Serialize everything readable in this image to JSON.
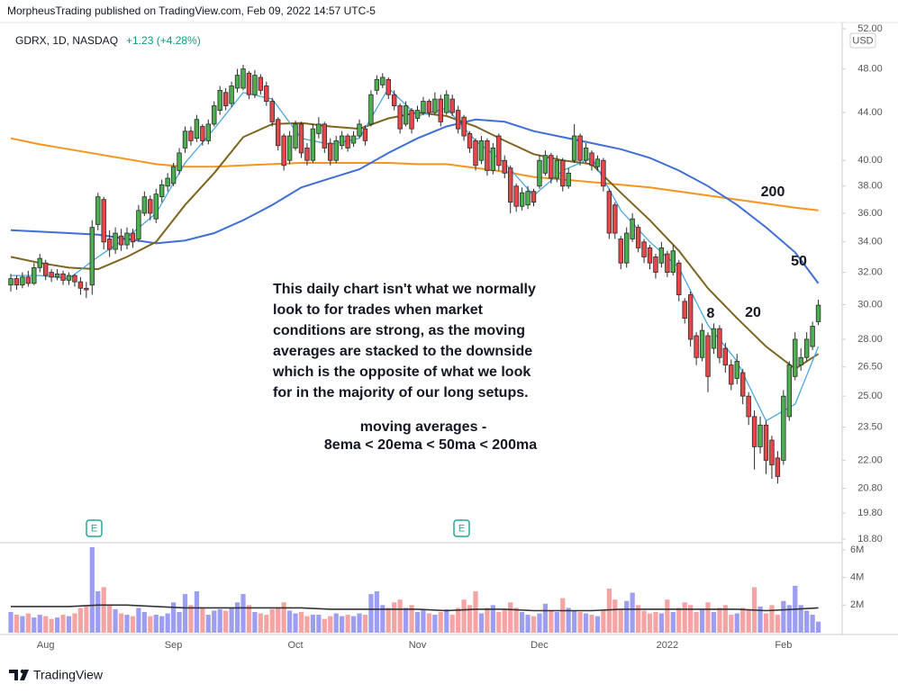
{
  "header": {
    "publisher": "MorpheusTrading published on TradingView.com, Feb 09, 2022 14:57 UTC-5",
    "symbol": "GDRX, 1D, NASDAQ",
    "change": "+1.23 (+4.28%)",
    "currency": "USD"
  },
  "chart_data": {
    "type": "candlestick",
    "log_scale": true,
    "categories": [
      null,
      null,
      null,
      null,
      null,
      null,
      "Aug",
      null,
      null,
      null,
      null,
      null,
      null,
      null,
      null,
      null,
      null,
      null,
      null,
      null,
      null,
      null,
      null,
      null,
      null,
      null,
      null,
      null,
      "Sep",
      null,
      null,
      null,
      null,
      null,
      null,
      null,
      null,
      null,
      null,
      null,
      null,
      null,
      null,
      null,
      null,
      null,
      null,
      null,
      null,
      "Oct",
      null,
      null,
      null,
      null,
      null,
      null,
      null,
      null,
      null,
      null,
      null,
      null,
      null,
      null,
      null,
      null,
      null,
      null,
      null,
      null,
      "Nov",
      null,
      null,
      null,
      null,
      null,
      null,
      null,
      null,
      null,
      null,
      null,
      null,
      null,
      null,
      null,
      null,
      null,
      null,
      null,
      null,
      "Dec",
      null,
      null,
      null,
      null,
      null,
      null,
      null,
      null,
      null,
      null,
      null,
      null,
      null,
      null,
      null,
      null,
      null,
      null,
      null,
      null,
      null,
      "2022",
      null,
      null,
      null,
      null,
      null,
      null,
      null,
      null,
      null,
      null,
      null,
      null,
      null,
      null,
      null,
      null,
      null,
      null,
      null,
      "Feb",
      null,
      null,
      null,
      null,
      null,
      null
    ],
    "open": [
      31.2,
      31.6,
      31.2,
      31.7,
      31.3,
      32.3,
      32.6,
      32.0,
      31.7,
      31.9,
      31.5,
      31.8,
      31.4,
      31.0,
      31.2,
      35.2,
      37.0,
      34.2,
      33.5,
      34.4,
      33.8,
      34.6,
      34.2,
      36.0,
      37.0,
      35.6,
      37.2,
      38.0,
      38.2,
      39.2,
      41.0,
      42.4,
      41.8,
      42.8,
      41.6,
      43.0,
      44.2,
      45.8,
      44.8,
      46.2,
      46.2,
      47.6,
      45.6,
      47.2,
      46.4,
      45.0,
      43.4,
      42.0,
      40.0,
      41.0,
      43.0,
      41.0,
      40.0,
      42.2,
      43.0,
      41.4,
      40.0,
      41.2,
      42.0,
      41.4,
      42.0,
      42.6,
      43.0,
      46.0,
      46.5,
      47.0,
      45.6,
      44.6,
      43.0,
      44.2,
      43.5,
      44.0,
      45.0,
      44.0,
      45.2,
      44.0,
      45.2,
      44.2,
      43.6,
      42.2,
      41.6,
      40.0,
      41.6,
      39.2,
      42.0,
      40.0,
      39.4,
      38.0,
      36.5,
      36.6,
      37.6,
      38.0,
      39.0,
      40.4,
      38.6,
      40.0,
      38.0,
      40.0,
      42.0,
      40.0,
      40.6,
      39.5,
      40.0,
      37.6,
      36.6,
      34.2,
      32.6,
      34.2,
      35.0,
      34.0,
      33.6,
      33.0,
      32.6,
      33.2,
      32.0,
      32.6,
      30.2,
      30.6,
      28.2,
      27.0,
      28.2,
      27.5,
      28.6,
      27.5,
      26.6,
      25.9,
      26.2,
      25.0,
      24.0,
      22.6,
      23.6,
      22.9,
      22.1,
      22.0,
      24.0,
      26.0,
      26.6,
      27.0,
      27.6,
      29.0
    ],
    "high": [
      31.9,
      31.8,
      32.0,
      32.1,
      32.6,
      33.2,
      32.8,
      32.2,
      32.2,
      32.1,
      32.0,
      31.9,
      31.7,
      31.4,
      35.5,
      37.5,
      37.2,
      34.8,
      35.0,
      34.9,
      35.0,
      34.9,
      36.6,
      37.6,
      37.3,
      37.8,
      38.5,
      39.0,
      39.8,
      41.0,
      42.8,
      42.8,
      43.8,
      43.0,
      43.4,
      45.0,
      46.4,
      46.2,
      46.8,
      48.0,
      48.4,
      47.8,
      47.9,
      47.5,
      46.8,
      45.3,
      43.6,
      42.2,
      42.4,
      43.3,
      43.2,
      41.4,
      43.0,
      43.6,
      43.2,
      41.8,
      42.0,
      42.4,
      42.2,
      42.4,
      43.4,
      42.9,
      46.0,
      47.4,
      47.6,
      47.2,
      46.0,
      44.8,
      45.0,
      44.4,
      44.6,
      45.4,
      45.2,
      45.8,
      45.6,
      46.0,
      45.6,
      44.6,
      43.8,
      42.4,
      41.8,
      42.0,
      41.8,
      41.4,
      42.2,
      40.4,
      39.6,
      38.2,
      37.9,
      38.0,
      37.8,
      40.4,
      40.8,
      40.6,
      40.4,
      40.2,
      39.4,
      43.0,
      42.2,
      41.4,
      40.8,
      40.4,
      40.2,
      37.8,
      36.8,
      34.4,
      35.0,
      36.0,
      35.2,
      34.2,
      33.8,
      33.2,
      34.0,
      33.4,
      33.8,
      32.8,
      30.4,
      30.8,
      28.4,
      28.9,
      28.4,
      28.9,
      28.8,
      27.8,
      26.9,
      27.2,
      26.4,
      25.2,
      24.3,
      24.0,
      23.8,
      23.1,
      22.4,
      25.3,
      26.8,
      28.4,
      27.5,
      28.4,
      29.0,
      30.3
    ],
    "low": [
      30.8,
      30.9,
      31.0,
      31.1,
      31.2,
      32.0,
      31.5,
      31.4,
      31.5,
      31.2,
      31.2,
      31.1,
      30.6,
      30.4,
      30.6,
      34.8,
      33.5,
      33.0,
      33.2,
      33.4,
      33.5,
      33.6,
      34.0,
      35.8,
      35.5,
      35.3,
      36.8,
      37.6,
      38.0,
      38.9,
      40.6,
      41.2,
      41.5,
      41.2,
      41.3,
      42.8,
      43.8,
      44.2,
      44.5,
      45.8,
      46.0,
      45.2,
      45.3,
      45.6,
      44.6,
      42.8,
      40.8,
      39.2,
      39.7,
      40.8,
      40.2,
      39.6,
      39.8,
      41.8,
      40.6,
      39.6,
      39.8,
      40.9,
      40.7,
      41.1,
      41.8,
      41.2,
      42.8,
      45.6,
      46.2,
      45.2,
      44.2,
      42.2,
      42.8,
      42.2,
      43.2,
      43.8,
      43.6,
      43.8,
      42.8,
      43.8,
      43.7,
      42.2,
      41.6,
      40.6,
      39.2,
      39.7,
      38.8,
      38.9,
      39.2,
      38.6,
      36.0,
      36.1,
      36.2,
      36.3,
      36.5,
      37.8,
      38.8,
      38.2,
      38.3,
      37.6,
      37.8,
      39.8,
      39.6,
      39.8,
      39.2,
      39.2,
      37.6,
      34.2,
      34.2,
      32.2,
      32.3,
      34.0,
      33.3,
      32.6,
      32.2,
      31.6,
      32.3,
      31.7,
      31.8,
      30.2,
      28.9,
      27.6,
      26.6,
      26.8,
      25.2,
      27.2,
      26.7,
      26.2,
      25.3,
      25.6,
      24.6,
      23.6,
      21.6,
      22.3,
      21.4,
      21.2,
      21.0,
      21.8,
      23.8,
      25.8,
      26.3,
      26.8,
      27.4,
      28.8
    ],
    "close": [
      31.6,
      31.2,
      31.7,
      31.3,
      32.3,
      32.9,
      31.8,
      31.7,
      31.9,
      31.5,
      31.8,
      31.4,
      31.0,
      30.9,
      35.0,
      37.2,
      34.0,
      33.5,
      34.6,
      33.8,
      34.6,
      34.0,
      36.2,
      37.2,
      36.0,
      37.4,
      38.1,
      38.6,
      39.5,
      40.6,
      42.4,
      41.6,
      43.4,
      41.6,
      43.0,
      44.6,
      46.0,
      44.6,
      46.4,
      47.4,
      48.0,
      45.6,
      47.4,
      46.0,
      45.0,
      43.2,
      41.2,
      39.6,
      42.0,
      43.0,
      40.6,
      40.0,
      42.6,
      43.0,
      41.0,
      40.0,
      41.6,
      42.0,
      41.0,
      42.0,
      43.0,
      41.6,
      45.6,
      47.0,
      47.2,
      45.6,
      44.6,
      42.6,
      44.6,
      42.6,
      44.2,
      45.0,
      44.0,
      45.2,
      43.2,
      45.6,
      44.0,
      42.6,
      42.0,
      41.0,
      39.6,
      41.6,
      39.2,
      41.0,
      39.6,
      39.0,
      36.8,
      36.5,
      37.5,
      37.6,
      36.8,
      40.0,
      40.4,
      38.6,
      40.0,
      38.0,
      39.0,
      42.0,
      40.0,
      41.0,
      39.6,
      40.1,
      38.0,
      34.6,
      34.6,
      32.6,
      34.6,
      35.6,
      33.6,
      33.0,
      32.6,
      32.0,
      33.6,
      32.0,
      33.4,
      30.6,
      29.2,
      28.0,
      27.0,
      28.5,
      26.0,
      28.6,
      27.0,
      26.6,
      25.6,
      26.8,
      25.0,
      24.0,
      22.6,
      23.6,
      22.0,
      21.8,
      21.3,
      25.0,
      26.6,
      28.0,
      27.0,
      28.0,
      28.74,
      29.97
    ],
    "colors": {
      "up": "#4caf50",
      "down": "#e8474a",
      "outline": "#2a2a2a"
    },
    "ylim": [
      18.8,
      52
    ],
    "yticks": [
      {
        "value": 52,
        "label": "52.00"
      },
      {
        "value": 48,
        "label": "48.00"
      },
      {
        "value": 44,
        "label": "44.00"
      },
      {
        "value": 40,
        "label": "40.00"
      },
      {
        "value": 38,
        "label": "38.00"
      },
      {
        "value": 36,
        "label": "36.00"
      },
      {
        "value": 34,
        "label": "34.00"
      },
      {
        "value": 32,
        "label": "32.00"
      },
      {
        "value": 30,
        "label": "30.00"
      },
      {
        "value": 28,
        "label": "28.00"
      },
      {
        "value": 26.5,
        "label": "26.50"
      },
      {
        "value": 25,
        "label": "25.00"
      },
      {
        "value": 23.5,
        "label": "23.50"
      },
      {
        "value": 22,
        "label": "22.00"
      },
      {
        "value": 20.8,
        "label": "20.80"
      },
      {
        "value": 19.8,
        "label": "19.80"
      },
      {
        "value": 18.8,
        "label": "18.80"
      }
    ],
    "moving_averages": [
      {
        "name": "200",
        "color": "#f7941d",
        "x": [
          0,
          5,
          10,
          15,
          20,
          25,
          30,
          35,
          40,
          45,
          50,
          55,
          60,
          65,
          70,
          75,
          80,
          85,
          90,
          95,
          100,
          105,
          110,
          115,
          120,
          125,
          130,
          135,
          139
        ],
        "values": [
          41.8,
          41.3,
          40.9,
          40.5,
          40.1,
          39.7,
          39.5,
          39.5,
          39.6,
          39.7,
          39.8,
          39.8,
          39.8,
          39.8,
          39.7,
          39.7,
          39.4,
          39.1,
          38.7,
          38.5,
          38.3,
          38.1,
          37.9,
          37.6,
          37.3,
          37.0,
          36.7,
          36.4,
          36.2
        ]
      },
      {
        "name": "50",
        "color": "#3f6fd6",
        "x": [
          0,
          5,
          10,
          15,
          20,
          25,
          30,
          35,
          40,
          45,
          50,
          55,
          60,
          65,
          70,
          75,
          80,
          85,
          90,
          95,
          100,
          105,
          110,
          115,
          120,
          125,
          130,
          135,
          139
        ],
        "values": [
          34.8,
          34.7,
          34.6,
          34.5,
          34.2,
          33.9,
          34.1,
          34.6,
          35.5,
          36.6,
          37.9,
          38.6,
          39.3,
          40.6,
          41.8,
          42.8,
          43.4,
          43.2,
          42.4,
          41.9,
          41.4,
          40.9,
          40.2,
          39.2,
          38.0,
          36.6,
          35.0,
          33.3,
          31.3
        ]
      },
      {
        "name": "20",
        "color": "#7d6520",
        "x": [
          0,
          5,
          10,
          15,
          20,
          25,
          30,
          35,
          40,
          45,
          50,
          55,
          60,
          65,
          70,
          75,
          80,
          85,
          90,
          95,
          100,
          105,
          110,
          115,
          120,
          125,
          130,
          135,
          139
        ],
        "values": [
          33.0,
          32.6,
          32.3,
          32.2,
          33.0,
          34.0,
          36.6,
          39.0,
          41.9,
          43.0,
          43.1,
          42.8,
          42.6,
          43.5,
          44.0,
          43.7,
          42.8,
          41.6,
          40.5,
          40.0,
          39.7,
          37.5,
          35.5,
          33.4,
          31.0,
          29.2,
          27.6,
          26.4,
          27.2
        ]
      },
      {
        "name": "8",
        "color": "#4aa6e0",
        "x": [
          0,
          5,
          10,
          15,
          20,
          25,
          30,
          35,
          40,
          45,
          50,
          55,
          60,
          65,
          70,
          75,
          80,
          85,
          90,
          95,
          100,
          105,
          110,
          115,
          120,
          125,
          130,
          135,
          139
        ],
        "values": [
          31.8,
          31.8,
          31.6,
          33.0,
          34.3,
          36.0,
          39.8,
          42.6,
          45.8,
          45.2,
          41.8,
          41.3,
          41.8,
          46.2,
          43.7,
          44.4,
          41.6,
          39.8,
          37.3,
          39.2,
          40.2,
          36.2,
          34.0,
          32.3,
          28.8,
          26.8,
          23.8,
          24.6,
          27.6
        ]
      }
    ],
    "volume": {
      "values": [
        1.5,
        1.3,
        1.2,
        1.4,
        1.1,
        1.3,
        1.2,
        1.0,
        1.1,
        1.3,
        1.2,
        1.4,
        1.8,
        1.9,
        6.2,
        3.0,
        3.3,
        2.0,
        1.7,
        1.4,
        1.3,
        1.2,
        1.8,
        1.5,
        1.2,
        1.3,
        1.2,
        1.4,
        2.2,
        1.5,
        2.8,
        2.0,
        3.0,
        1.8,
        1.3,
        1.6,
        1.7,
        1.6,
        1.8,
        2.2,
        2.8,
        2.0,
        1.5,
        1.4,
        1.3,
        1.7,
        1.8,
        2.2,
        1.6,
        1.4,
        1.5,
        1.2,
        1.3,
        1.3,
        1.0,
        1.2,
        1.4,
        1.2,
        1.3,
        1.2,
        1.4,
        1.3,
        2.8,
        3.0,
        2.0,
        1.8,
        2.2,
        2.4,
        1.8,
        2.0,
        1.5,
        1.7,
        1.4,
        1.3,
        1.5,
        1.7,
        1.3,
        1.8,
        2.4,
        2.0,
        3.0,
        1.4,
        1.8,
        2.0,
        1.5,
        1.7,
        2.2,
        1.8,
        1.5,
        1.3,
        1.2,
        1.4,
        2.1,
        1.6,
        1.5,
        2.5,
        1.8,
        1.6,
        1.5,
        1.4,
        1.3,
        1.2,
        1.6,
        3.2,
        2.4,
        1.7,
        2.3,
        2.9,
        2.0,
        1.6,
        1.4,
        1.5,
        1.4,
        2.4,
        1.5,
        1.8,
        2.2,
        2.0,
        1.5,
        1.7,
        2.2,
        1.5,
        1.8,
        2.0,
        1.3,
        1.4,
        1.8,
        1.7,
        3.3,
        1.9,
        1.4,
        2.0,
        1.3,
        2.3,
        2.0,
        3.4,
        2.0,
        1.6,
        1.3,
        0.8
      ],
      "colors": {
        "up": "#9d9df2",
        "down": "#f5a3a3"
      },
      "ylim": [
        0,
        6
      ],
      "yticks": [
        {
          "value": 6,
          "label": "6M"
        },
        {
          "value": 4,
          "label": "4M"
        },
        {
          "value": 2,
          "label": "2M"
        }
      ],
      "average": {
        "color": "#333333",
        "x": [
          0,
          5,
          10,
          15,
          20,
          25,
          30,
          35,
          40,
          45,
          50,
          55,
          60,
          65,
          70,
          75,
          80,
          85,
          90,
          95,
          100,
          105,
          110,
          115,
          120,
          125,
          130,
          135,
          139
        ],
        "values": [
          1.9,
          1.9,
          1.9,
          2.0,
          2.0,
          1.9,
          1.8,
          1.8,
          1.8,
          1.8,
          1.8,
          1.7,
          1.7,
          1.7,
          1.7,
          1.6,
          1.7,
          1.7,
          1.6,
          1.6,
          1.6,
          1.7,
          1.7,
          1.7,
          1.7,
          1.7,
          1.6,
          1.7,
          1.8
        ]
      }
    },
    "note": [
      "This daily chart isn't what we normally",
      "look to for trades when market",
      "conditions are strong, as the moving",
      "averages are stacked to the downside",
      "which is the opposite of what we look",
      "for in the majority of our long setups."
    ],
    "formula": [
      "moving averages -",
      "8ema < 20ema < 50ma < 200ma"
    ],
    "earnings": [
      "E",
      "E"
    ]
  },
  "footer": {
    "brand": "TradingView"
  }
}
